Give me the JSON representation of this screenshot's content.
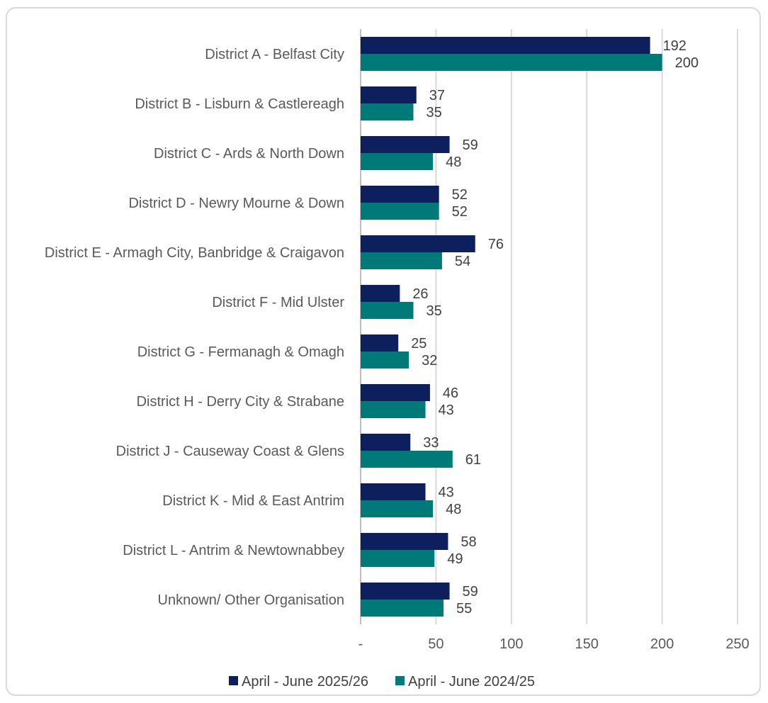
{
  "chart_data": {
    "type": "bar",
    "orientation": "horizontal",
    "categories": [
      "District A - Belfast City",
      "District B - Lisburn & Castlereagh",
      "District C - Ards & North Down",
      "District D - Newry Mourne & Down",
      "District E - Armagh City, Banbridge & Craigavon",
      "District F - Mid Ulster",
      "District G - Fermanagh & Omagh",
      "District H - Derry City & Strabane",
      "District J - Causeway Coast & Glens",
      "District K - Mid & East Antrim",
      "District L - Antrim & Newtownabbey",
      "Unknown/ Other Organisation"
    ],
    "series": [
      {
        "name": "April - June 2025/26",
        "color": "#0d1f5c",
        "values": [
          192,
          37,
          59,
          52,
          76,
          26,
          25,
          46,
          33,
          43,
          58,
          59
        ]
      },
      {
        "name": "April - June 2024/25",
        "color": "#007a78",
        "values": [
          200,
          35,
          48,
          52,
          54,
          35,
          32,
          43,
          61,
          48,
          49,
          55
        ]
      }
    ],
    "xlim": [
      0,
      250
    ],
    "xticks": [
      0,
      50,
      100,
      150,
      200,
      250
    ],
    "xtick_labels": [
      "-",
      "50",
      "100",
      "150",
      "200",
      "250"
    ],
    "grid": "vertical",
    "legend_position": "bottom",
    "title": "",
    "xlabel": "",
    "ylabel": ""
  }
}
